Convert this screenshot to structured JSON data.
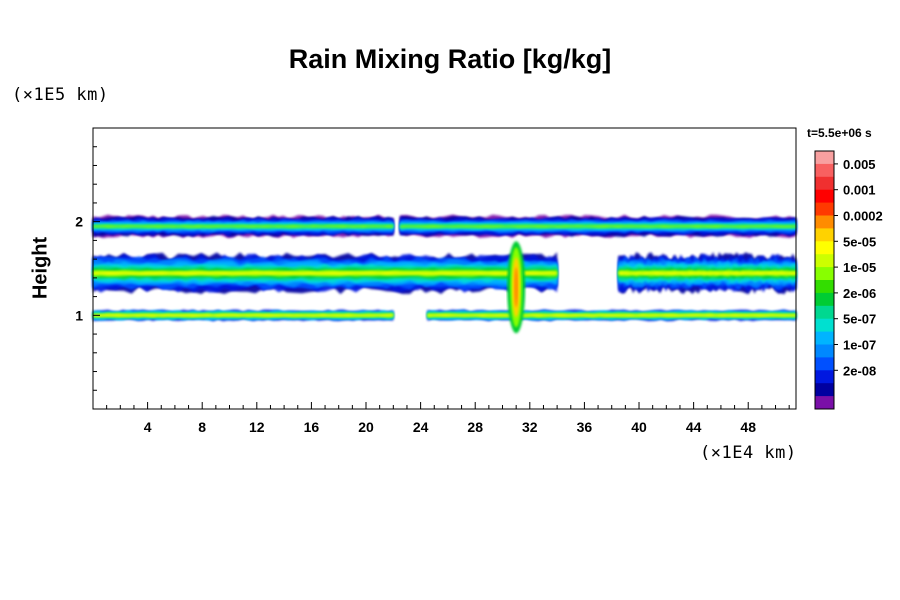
{
  "chart_data": {
    "type": "heatmap",
    "title": "Rain Mixing Ratio [kg/kg]",
    "ylabel": "Height",
    "xlabel": "",
    "x_unit": "(×1E4 km)",
    "y_unit": "(×1E5 km)",
    "time_label": "t=5.5e+06 s",
    "xlim": [
      0,
      51.5
    ],
    "ylim": [
      0,
      3
    ],
    "x_ticks": [
      4,
      8,
      12,
      16,
      20,
      24,
      28,
      32,
      36,
      40,
      44,
      48
    ],
    "y_ticks": [
      1,
      2
    ],
    "y_minor_step": 0.2,
    "x_minor_step": 1,
    "grid": false,
    "legend_position": "right",
    "colorbar": {
      "labels": [
        "0.005",
        "0.001",
        "0.0002",
        "5e-05",
        "1e-05",
        "2e-06",
        "5e-07",
        "1e-07",
        "2e-08"
      ],
      "colors": [
        "#f8a0a0",
        "#f86060",
        "#f03030",
        "#ff0000",
        "#ff3a00",
        "#ff8c00",
        "#ffd200",
        "#ffff00",
        "#ccff00",
        "#88ff00",
        "#33dd00",
        "#00cc33",
        "#00d890",
        "#00e0d0",
        "#00b4ff",
        "#0088ff",
        "#0050ff",
        "#0018e0",
        "#0000a0",
        "#7a10a8"
      ]
    },
    "bands": [
      {
        "y_center": 1.95,
        "y_half_width": 0.1,
        "x_ranges": [
          [
            0.0,
            22.0
          ],
          [
            22.5,
            51.5
          ]
        ],
        "description": "upper band, mostly blue/purple with green-yellow patches"
      },
      {
        "y_center": 1.45,
        "y_half_width": 0.18,
        "x_ranges": [
          [
            0.0,
            34.0
          ],
          [
            38.5,
            51.5
          ]
        ],
        "description": "middle band, green/cyan with yellow patches, orange peak near x=31"
      },
      {
        "y_center": 1.0,
        "y_half_width": 0.05,
        "x_ranges": [
          [
            0.0,
            22.0
          ],
          [
            24.5,
            51.5
          ]
        ],
        "description": "lower thin band, green with yellow-orange streaks"
      }
    ]
  }
}
